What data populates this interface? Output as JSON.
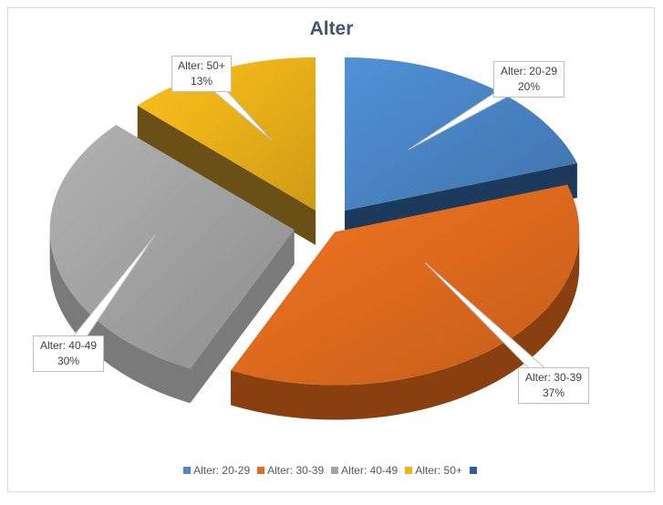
{
  "chart_data": {
    "type": "pie",
    "title": "Alter",
    "categories": [
      "Alter: 20-29",
      "Alter: 30-39",
      "Alter: 40-49",
      "Alter: 50+"
    ],
    "values": [
      20,
      37,
      30,
      13
    ],
    "value_unit": "%",
    "data_labels": [
      {
        "category": "Alter: 20-29",
        "percent": "20%"
      },
      {
        "category": "Alter: 30-39",
        "percent": "37%"
      },
      {
        "category": "Alter: 40-49",
        "percent": "30%"
      },
      {
        "category": "Alter: 50+",
        "percent": "13%"
      }
    ],
    "colors": [
      "#4a86c8",
      "#e36c1e",
      "#a5a5a5",
      "#f0b419"
    ],
    "legend_placement": "bottom",
    "legend": [
      {
        "label": "Alter: 20-29",
        "color": "#4a86c8"
      },
      {
        "label": "Alter: 30-39",
        "color": "#e36c1e"
      },
      {
        "label": "Alter: 40-49",
        "color": "#a5a5a5"
      },
      {
        "label": "Alter: 50+",
        "color": "#f0b419"
      },
      {
        "label": "",
        "color": "#2e5d9a"
      }
    ],
    "exploded": true,
    "three_d": true
  }
}
